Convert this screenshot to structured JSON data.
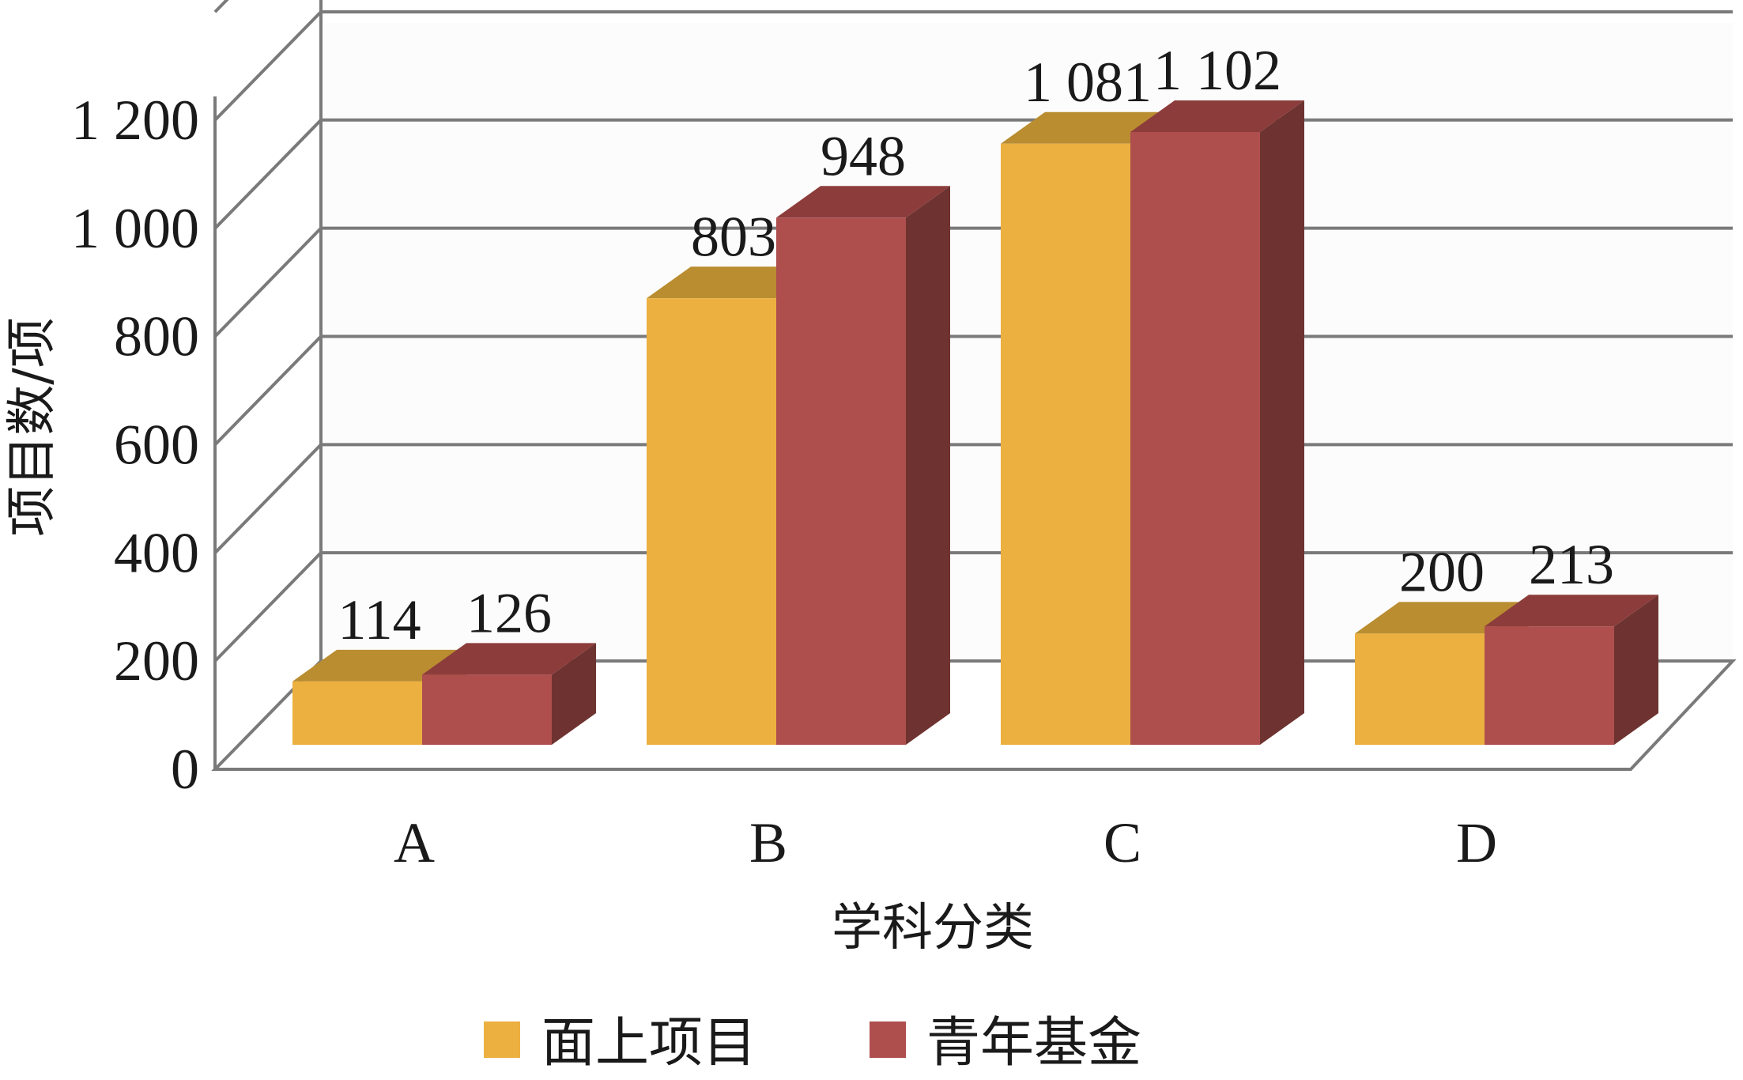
{
  "chart_data": {
    "type": "bar",
    "categories": [
      "A",
      "B",
      "C",
      "D"
    ],
    "series": [
      {
        "name": "面上项目",
        "values": [
          114,
          803,
          1081,
          200
        ]
      },
      {
        "name": "青年基金",
        "values": [
          126,
          948,
          1102,
          213
        ]
      }
    ],
    "value_labels": [
      [
        "114",
        "803",
        "1 081",
        "200"
      ],
      [
        "126",
        "948",
        "1 102",
        "213"
      ]
    ],
    "xlabel": "学科分类",
    "ylabel": "项目数/项",
    "ylim": [
      0,
      1200
    ],
    "yticks": [
      0,
      200,
      400,
      600,
      800,
      1000,
      1200
    ],
    "ytick_labels": [
      "0",
      "200",
      "400",
      "600",
      "800",
      "1 000",
      "1 200"
    ],
    "grid": true,
    "legend_position": "bottom",
    "style": "3d-bar",
    "colors": {
      "series_front": [
        "#ebb040",
        "#ae4f4e"
      ],
      "series_top": [
        "#b98d30",
        "#8c3d3b"
      ],
      "series_side": [
        "#9a7424",
        "#6e3330"
      ],
      "grid": "#7a7a7a",
      "wall": "#fcfcfc"
    }
  }
}
